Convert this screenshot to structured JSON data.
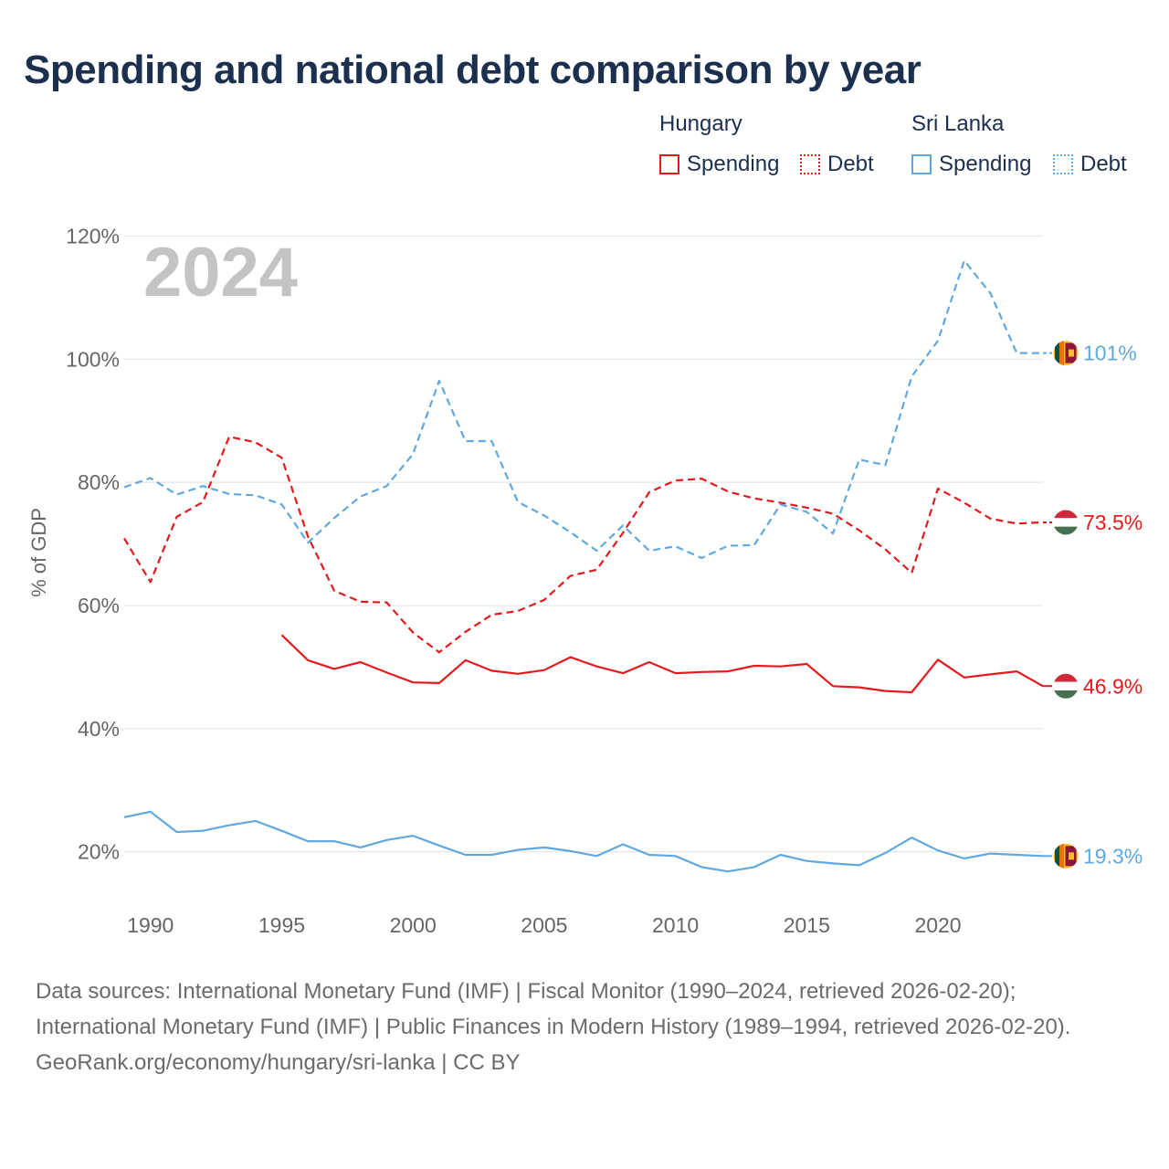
{
  "title": "Spending and national debt comparison by year",
  "legend": {
    "groups": [
      {
        "name": "Hungary",
        "items": [
          {
            "label": "Spending",
            "style": "solid",
            "color": "#e31a1c"
          },
          {
            "label": "Debt",
            "style": "dotted",
            "color": "#e31a1c"
          }
        ]
      },
      {
        "name": "Sri Lanka",
        "items": [
          {
            "label": "Spending",
            "style": "solid",
            "color": "#5fa8e0"
          },
          {
            "label": "Debt",
            "style": "dotted",
            "color": "#5fa8e0"
          }
        ]
      }
    ]
  },
  "chart_data": {
    "type": "line",
    "year_label": "2024",
    "ylabel": "% of GDP",
    "xlim": [
      1989,
      2024
    ],
    "ylim": [
      10,
      122
    ],
    "y_ticks": [
      20,
      40,
      60,
      80,
      100,
      120
    ],
    "y_tick_labels": [
      "20%",
      "40%",
      "60%",
      "80%",
      "100%",
      "120%"
    ],
    "x_ticks": [
      1990,
      1995,
      2000,
      2005,
      2010,
      2015,
      2020
    ],
    "x_tick_labels": [
      "1990",
      "1995",
      "2000",
      "2005",
      "2010",
      "2015",
      "2020"
    ],
    "series": [
      {
        "name": "Hungary Spending",
        "country": "hungary",
        "color": "#e31a1c",
        "dash": "solid",
        "x": [
          1995,
          1996,
          1997,
          1998,
          1999,
          2000,
          2001,
          2002,
          2003,
          2004,
          2005,
          2006,
          2007,
          2008,
          2009,
          2010,
          2011,
          2012,
          2013,
          2014,
          2015,
          2016,
          2017,
          2018,
          2019,
          2020,
          2021,
          2022,
          2023,
          2024
        ],
        "values": [
          55.2,
          51.1,
          49.7,
          50.8,
          49.1,
          47.5,
          47.4,
          51.1,
          49.4,
          48.9,
          49.5,
          51.6,
          50.1,
          49.0,
          50.8,
          49.0,
          49.2,
          49.3,
          50.2,
          50.1,
          50.5,
          46.9,
          46.7,
          46.1,
          45.9,
          51.2,
          48.3,
          48.8,
          49.3,
          46.9
        ],
        "end_label": "46.9%"
      },
      {
        "name": "Hungary Debt",
        "country": "hungary",
        "color": "#e31a1c",
        "dash": "dashed",
        "x": [
          1989,
          1990,
          1991,
          1992,
          1993,
          1994,
          1995,
          1996,
          1997,
          1998,
          1999,
          2000,
          2001,
          2002,
          2003,
          2004,
          2005,
          2006,
          2007,
          2008,
          2009,
          2010,
          2011,
          2012,
          2013,
          2014,
          2015,
          2016,
          2017,
          2018,
          2019,
          2020,
          2021,
          2022,
          2023,
          2024
        ],
        "values": [
          70.9,
          63.8,
          74.4,
          76.8,
          87.4,
          86.5,
          84.0,
          71.2,
          62.4,
          60.6,
          60.5,
          55.6,
          52.4,
          55.7,
          58.5,
          59.1,
          60.9,
          64.8,
          65.8,
          71.8,
          78.4,
          80.3,
          80.6,
          78.5,
          77.4,
          76.7,
          75.9,
          74.9,
          72.2,
          69.1,
          65.3,
          79.0,
          76.7,
          74.1,
          73.3,
          73.5
        ],
        "end_label": "73.5%"
      },
      {
        "name": "Sri Lanka Spending",
        "country": "sri-lanka",
        "color": "#5fa8e0",
        "dash": "solid",
        "x": [
          1989,
          1990,
          1991,
          1992,
          1993,
          1994,
          1995,
          1996,
          1997,
          1998,
          1999,
          2000,
          2001,
          2002,
          2003,
          2004,
          2005,
          2006,
          2007,
          2008,
          2009,
          2010,
          2011,
          2012,
          2013,
          2014,
          2015,
          2016,
          2017,
          2018,
          2019,
          2020,
          2021,
          2022,
          2023,
          2024
        ],
        "values": [
          25.6,
          26.5,
          23.2,
          23.4,
          24.3,
          25.0,
          23.4,
          21.7,
          21.7,
          20.7,
          21.9,
          22.6,
          21.0,
          19.5,
          19.5,
          20.3,
          20.7,
          20.1,
          19.3,
          21.2,
          19.5,
          19.3,
          17.5,
          16.8,
          17.5,
          19.5,
          18.5,
          18.1,
          17.8,
          19.8,
          22.3,
          20.2,
          18.9,
          19.7,
          19.5,
          19.3
        ],
        "end_label": "19.3%"
      },
      {
        "name": "Sri Lanka Debt",
        "country": "sri-lanka",
        "color": "#5fa8e0",
        "dash": "dashed",
        "x": [
          1989,
          1990,
          1991,
          1992,
          1993,
          1994,
          1995,
          1996,
          1997,
          1998,
          1999,
          2000,
          2001,
          2002,
          2003,
          2004,
          2005,
          2006,
          2007,
          2008,
          2009,
          2010,
          2011,
          2012,
          2013,
          2014,
          2015,
          2016,
          2017,
          2018,
          2019,
          2020,
          2021,
          2022,
          2023,
          2024
        ],
        "values": [
          79.2,
          80.7,
          78.0,
          79.4,
          78.1,
          77.9,
          76.4,
          70.2,
          74.2,
          77.7,
          79.4,
          84.6,
          96.5,
          86.7,
          86.7,
          76.8,
          74.6,
          71.9,
          68.9,
          73.0,
          68.9,
          69.6,
          67.7,
          69.7,
          69.8,
          76.4,
          75.2,
          71.7,
          83.7,
          82.8,
          97.2,
          103.0,
          116.0,
          110.7,
          101.0,
          101.0
        ],
        "end_label": "101%"
      }
    ]
  },
  "footer": {
    "sources": "Data sources: International Monetary Fund (IMF) | Fiscal Monitor (1990–2024, retrieved 2026-02-20); International Monetary Fund (IMF) | Public Finances in Modern History (1989–1994, retrieved 2026-02-20).",
    "credit": "GeoRank.org/economy/hungary/sri-lanka | CC BY"
  }
}
